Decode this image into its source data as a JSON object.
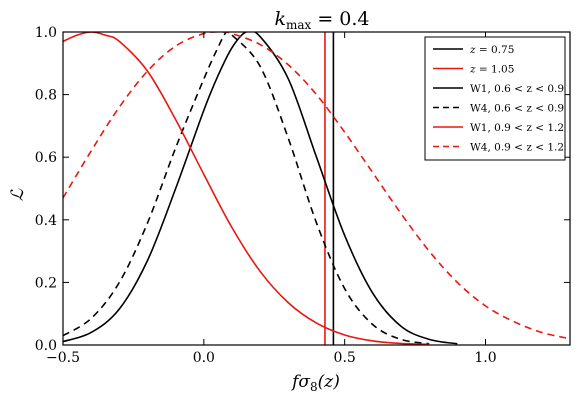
{
  "chart_data": {
    "type": "line",
    "title": "k_max = 0.4",
    "title_main": "k",
    "title_sub": "max",
    "title_rest": " = 0.4",
    "xlabel": "fσ8(z)",
    "xlabel_main": "fσ",
    "xlabel_sub": "8",
    "xlabel_rest": "(z)",
    "ylabel": "ℒ",
    "xlim": [
      -0.5,
      1.3
    ],
    "ylim": [
      0.0,
      1.0
    ],
    "xticks": [
      -0.5,
      0.0,
      0.5,
      1.0
    ],
    "xtick_labels": [
      "−0.5",
      "0.0",
      "0.5",
      "1.0"
    ],
    "yticks": [
      0.0,
      0.2,
      0.4,
      0.6,
      0.8,
      1.0
    ],
    "ytick_labels": [
      "0.0",
      "0.2",
      "0.4",
      "0.6",
      "0.8",
      "1.0"
    ],
    "grid": false,
    "legend_position": "top-right",
    "series": [
      {
        "name": "z = 0.75",
        "kind": "vline",
        "x": 0.46,
        "color": "#000000",
        "dash": "solid"
      },
      {
        "name": "z = 1.05",
        "kind": "vline",
        "x": 0.43,
        "color": "#e8180f",
        "dash": "solid"
      },
      {
        "name": "W1, 0.6 < z < 0.9",
        "kind": "curve",
        "color": "#000000",
        "dash": "solid",
        "x": [
          -0.5,
          -0.4,
          -0.3,
          -0.2,
          -0.1,
          0.0,
          0.05,
          0.1,
          0.15,
          0.2,
          0.3,
          0.4,
          0.5,
          0.6,
          0.7,
          0.8,
          0.9
        ],
        "y": [
          0.011,
          0.04,
          0.115,
          0.27,
          0.5,
          0.75,
          0.86,
          0.95,
          1.0,
          0.985,
          0.85,
          0.6,
          0.35,
          0.165,
          0.06,
          0.018,
          0.004
        ]
      },
      {
        "name": "W4, 0.6 < z < 0.9",
        "kind": "curve",
        "color": "#000000",
        "dash": "dashed",
        "x": [
          -0.5,
          -0.4,
          -0.3,
          -0.2,
          -0.1,
          0.0,
          0.05,
          0.08,
          0.1,
          0.2,
          0.3,
          0.4,
          0.5,
          0.6,
          0.7,
          0.8
        ],
        "y": [
          0.03,
          0.085,
          0.2,
          0.39,
          0.63,
          0.85,
          0.95,
          1.0,
          0.99,
          0.89,
          0.66,
          0.39,
          0.18,
          0.065,
          0.018,
          0.004
        ]
      },
      {
        "name": "W1, 0.9 < z < 1.2",
        "kind": "curve",
        "color": "#e8180f",
        "dash": "solid",
        "x": [
          -0.5,
          -0.45,
          -0.4,
          -0.35,
          -0.3,
          -0.2,
          -0.1,
          0.0,
          0.1,
          0.2,
          0.3,
          0.4,
          0.5,
          0.6,
          0.7,
          0.8
        ],
        "y": [
          0.97,
          0.99,
          1.0,
          0.99,
          0.97,
          0.875,
          0.72,
          0.545,
          0.375,
          0.235,
          0.135,
          0.07,
          0.032,
          0.013,
          0.005,
          0.002
        ]
      },
      {
        "name": "W4, 0.9 < z < 1.2",
        "kind": "curve",
        "color": "#e8180f",
        "dash": "dashed",
        "x": [
          -0.5,
          -0.4,
          -0.3,
          -0.2,
          -0.1,
          0.0,
          0.07,
          0.1,
          0.2,
          0.3,
          0.4,
          0.5,
          0.6,
          0.7,
          0.8,
          0.9,
          1.0,
          1.1,
          1.2,
          1.3
        ],
        "y": [
          0.47,
          0.62,
          0.76,
          0.875,
          0.955,
          0.995,
          1.0,
          0.995,
          0.96,
          0.895,
          0.8,
          0.68,
          0.55,
          0.42,
          0.3,
          0.2,
          0.125,
          0.075,
          0.04,
          0.02
        ]
      }
    ],
    "legend": [
      {
        "main": "z",
        "rest": " = 0.75",
        "color": "#000000",
        "dash": "solid"
      },
      {
        "main": "z",
        "rest": " = 1.05",
        "color": "#e8180f",
        "dash": "solid"
      },
      {
        "main": "W1, 0.6 < z < 0.9",
        "rest": "",
        "color": "#000000",
        "dash": "solid"
      },
      {
        "main": "W4, 0.6 < z < 0.9",
        "rest": "",
        "color": "#000000",
        "dash": "dashed"
      },
      {
        "main": "W1, 0.9 < z < 1.2",
        "rest": "",
        "color": "#e8180f",
        "dash": "solid"
      },
      {
        "main": "W4, 0.9 < z < 1.2",
        "rest": "",
        "color": "#e8180f",
        "dash": "dashed"
      }
    ]
  }
}
